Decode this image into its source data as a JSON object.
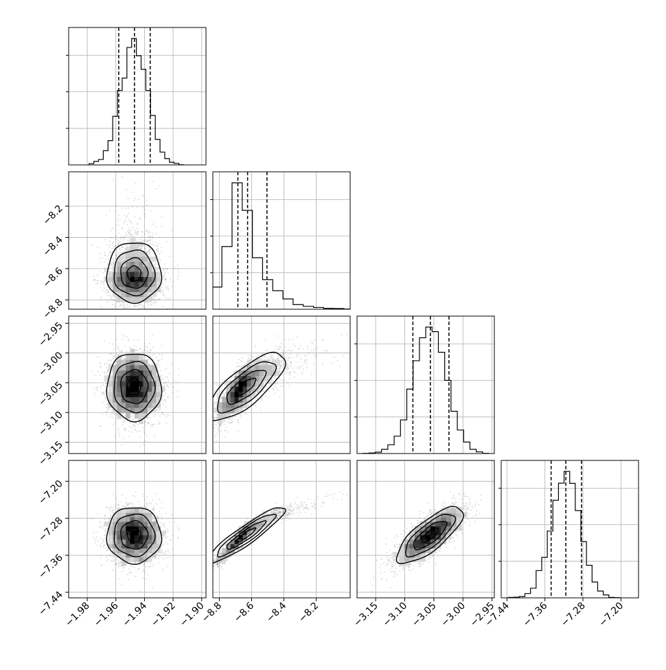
{
  "chart_data": {
    "type": "corner",
    "parameters": [
      {
        "xlim": [
          -1.993,
          -1.897
        ],
        "ylim": [
          -8.86,
          -7.98
        ],
        "ticks": [
          -1.98,
          -1.96,
          -1.94,
          -1.92,
          -1.9
        ],
        "tick_labels": [
          "−1.98",
          "−1.96",
          "−1.94",
          "−1.92",
          "−1.90"
        ],
        "center": -1.947,
        "sigma": 0.0095,
        "quantiles": [
          -1.958,
          -1.947,
          -1.936
        ]
      },
      {
        "xlim": [
          -8.84,
          -7.99
        ],
        "ylim": [
          -8.86,
          -7.98
        ],
        "ticks": [
          -8.8,
          -8.6,
          -8.4,
          -8.2
        ],
        "tick_labels": [
          "−8.8",
          "−8.6",
          "−8.4",
          "−8.2"
        ],
        "center": -8.655,
        "sigma": 0.08,
        "skew": 1.6,
        "quantiles": [
          -8.685,
          -8.625,
          -8.505
        ]
      },
      {
        "xlim": [
          -3.182,
          -2.946
        ],
        "ylim": [
          -3.169,
          -2.938
        ],
        "ticks": [
          -3.15,
          -3.1,
          -3.05,
          -3.0,
          -2.95
        ],
        "tick_labels": [
          "−3.15",
          "−3.10",
          "−3.05",
          "−3.00",
          "−2.95"
        ],
        "center": -3.056,
        "sigma": 0.028,
        "quantiles": [
          -3.086,
          -3.056,
          -3.024
        ]
      },
      {
        "xlim": [
          -7.452,
          -7.163
        ],
        "ylim": [
          -7.452,
          -7.155
        ],
        "ticks": [
          -7.44,
          -7.36,
          -7.28,
          -7.2
        ],
        "tick_labels": [
          "−7.44",
          "−7.36",
          "−7.28",
          "−7.20"
        ],
        "center": -7.316,
        "sigma": 0.03,
        "quantiles": [
          -7.347,
          -7.316,
          -7.283
        ]
      }
    ],
    "correlations": [
      {
        "i": 1,
        "j": 0,
        "rho": 0.0
      },
      {
        "i": 2,
        "j": 0,
        "rho": 0.0
      },
      {
        "i": 2,
        "j": 1,
        "rho": 0.8
      },
      {
        "i": 3,
        "j": 0,
        "rho": 0.1
      },
      {
        "i": 3,
        "j": 1,
        "rho": 0.96
      },
      {
        "i": 3,
        "j": 2,
        "rho": 0.65
      }
    ],
    "histogram_bins": 20,
    "grid": true,
    "quantile_line_style": "dashed"
  }
}
